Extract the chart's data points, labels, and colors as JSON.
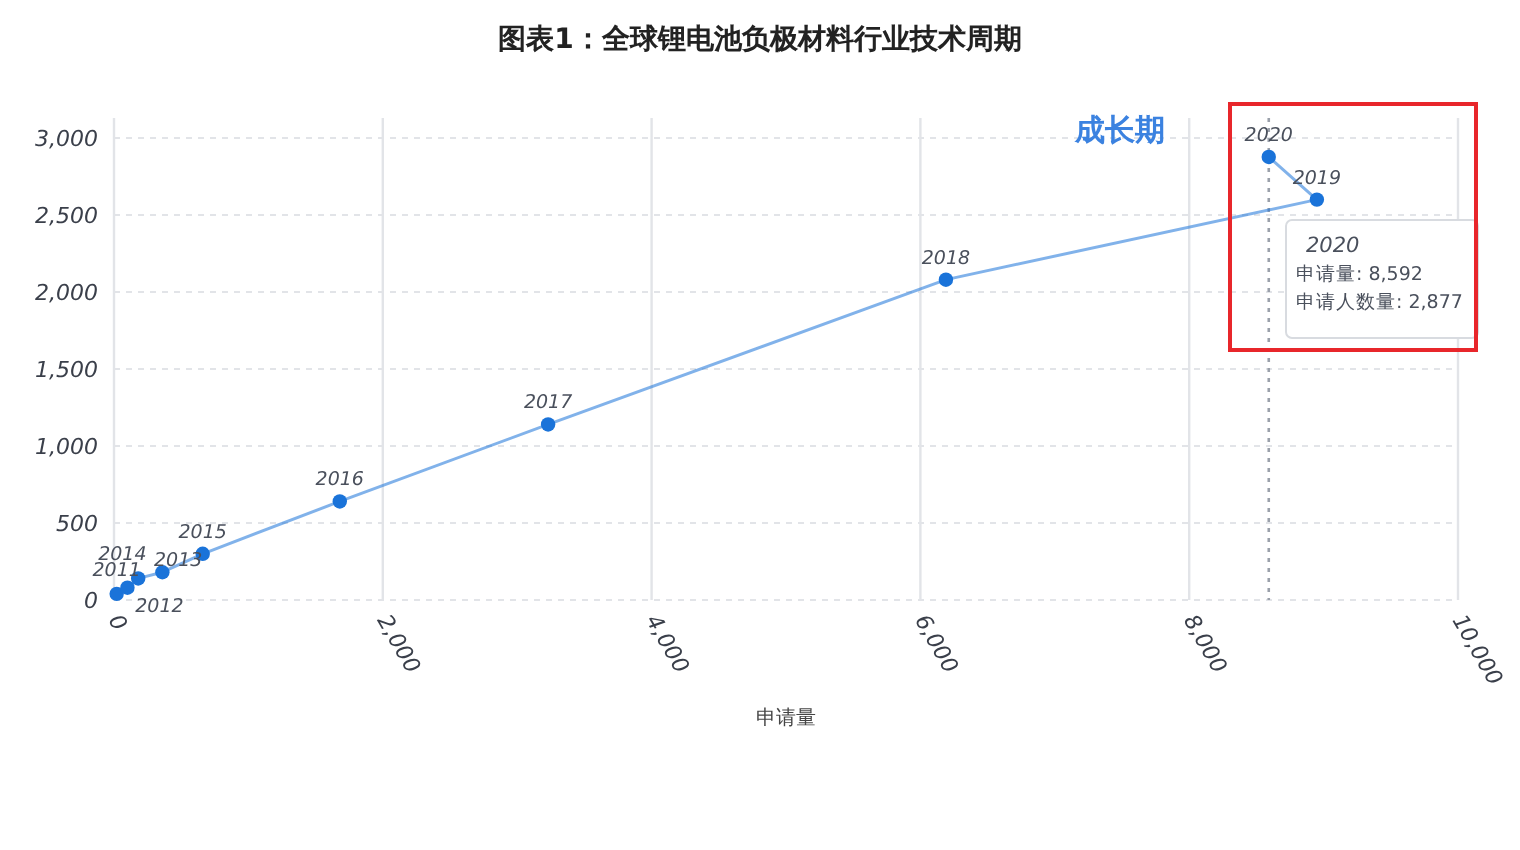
{
  "chart_data": {
    "type": "line",
    "title": "图表1：全球锂电池负极材料行业技术周期",
    "xlabel": "申请量",
    "xlim": [
      0,
      10000
    ],
    "ylim": [
      0,
      3000
    ],
    "xticks": [
      0,
      {
        "value": 2000,
        "label": "2,000"
      },
      {
        "value": 4000,
        "label": "4,000"
      },
      {
        "value": 6000,
        "label": "6,000"
      },
      {
        "value": 8000,
        "label": "8,000"
      },
      {
        "value": 10000,
        "label": "10,000"
      }
    ],
    "yticks": [
      0,
      500,
      {
        "value": 1000,
        "label": "1,000"
      },
      {
        "value": 1500,
        "label": "1,500"
      },
      {
        "value": 2000,
        "label": "2,000"
      },
      {
        "value": 2500,
        "label": "2,500"
      },
      {
        "value": 3000,
        "label": "3,000"
      }
    ],
    "grid": true,
    "marker": "circle",
    "line_style": "solid",
    "series": [
      {
        "color": "#1a73d9",
        "x": [
          20,
          100,
          180,
          360,
          660,
          1680,
          3230,
          6190,
          8950,
          8592
        ],
        "values": [
          40,
          80,
          140,
          180,
          300,
          640,
          1140,
          2080,
          2600,
          2877
        ]
      }
    ],
    "ref_lines": [
      {
        "axis": "x",
        "value": 8592,
        "color": "#9aa0aa",
        "line_style": "dotted"
      }
    ],
    "annotations": [
      "成长期",
      "2020",
      "申请量: 8,592",
      "申请人数量: 2,877",
      {
        "text": "2011",
        "x": 20,
        "y": 40
      },
      {
        "text": "2012",
        "x": 100,
        "y": 80
      },
      {
        "text": "2013",
        "x": 180,
        "y": 140
      },
      {
        "text": "2014",
        "x": 360,
        "y": 180
      },
      {
        "text": "2015",
        "x": 660,
        "y": 300
      },
      {
        "text": "2016",
        "x": 1680,
        "y": 640
      },
      {
        "text": "2017",
        "x": 3230,
        "y": 1140
      },
      {
        "text": "2018",
        "x": 6190,
        "y": 2080
      },
      {
        "text": "2019",
        "x": 8950,
        "y": 2600
      },
      {
        "text": "2020",
        "x": 8592,
        "y": 2877
      }
    ]
  }
}
